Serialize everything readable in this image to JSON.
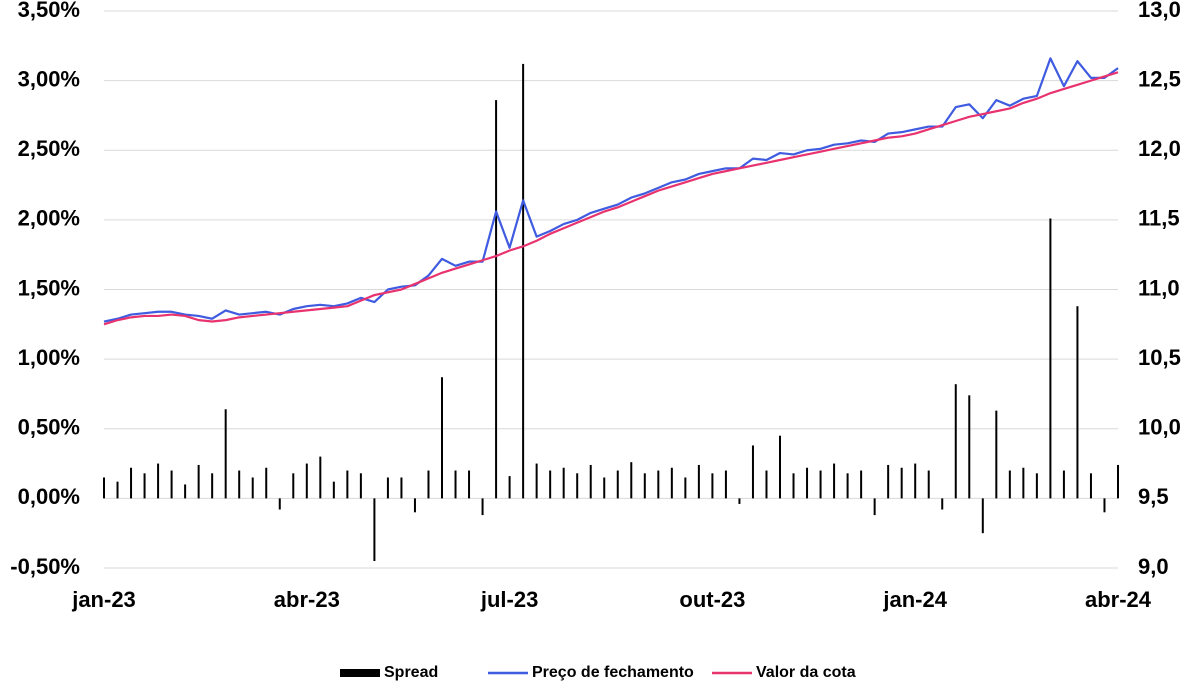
{
  "chart_data": {
    "type": "bar-line-combo",
    "categories": [
      "jan-23",
      null,
      null,
      null,
      null,
      null,
      null,
      null,
      null,
      null,
      null,
      null,
      null,
      null,
      null,
      "abr-23",
      null,
      null,
      null,
      null,
      null,
      null,
      null,
      null,
      null,
      null,
      null,
      null,
      null,
      null,
      "jul-23",
      null,
      null,
      null,
      null,
      null,
      null,
      null,
      null,
      null,
      null,
      null,
      null,
      null,
      null,
      "out-23",
      null,
      null,
      null,
      null,
      null,
      null,
      null,
      null,
      null,
      null,
      null,
      null,
      null,
      null,
      "jan-24",
      null,
      null,
      null,
      null,
      null,
      null,
      null,
      null,
      null,
      null,
      null,
      null,
      null,
      null,
      "abr-24"
    ],
    "series": [
      {
        "name": "Spread",
        "color": "#000000",
        "kind": "bar",
        "axis": "y",
        "values": [
          0.15,
          0.12,
          0.22,
          0.18,
          0.25,
          0.2,
          0.1,
          0.24,
          0.18,
          0.64,
          0.2,
          0.15,
          0.22,
          -0.08,
          0.18,
          0.25,
          0.3,
          0.12,
          0.2,
          0.18,
          -0.45,
          0.15,
          0.15,
          -0.1,
          0.2,
          0.87,
          0.2,
          0.2,
          -0.12,
          2.86,
          0.16,
          3.12,
          0.25,
          0.2,
          0.22,
          0.18,
          0.24,
          0.15,
          0.2,
          0.26,
          0.18,
          0.2,
          0.22,
          0.15,
          0.24,
          0.18,
          0.2,
          -0.04,
          0.38,
          0.2,
          0.45,
          0.18,
          0.22,
          0.2,
          0.25,
          0.18,
          0.2,
          -0.12,
          0.24,
          0.22,
          0.25,
          0.2,
          -0.08,
          0.82,
          0.74,
          -0.25,
          0.63,
          0.2,
          0.22,
          0.18,
          2.01,
          0.2,
          1.38,
          0.18,
          -0.1,
          0.24
        ]
      },
      {
        "name": "Preço de fechamento",
        "color": "#3f5be0",
        "kind": "line",
        "axis": "y2",
        "values": [
          10.77,
          10.79,
          10.82,
          10.83,
          10.84,
          10.84,
          10.82,
          10.81,
          10.79,
          10.85,
          10.82,
          10.83,
          10.84,
          10.82,
          10.86,
          10.88,
          10.89,
          10.88,
          10.9,
          10.94,
          10.91,
          11.0,
          11.02,
          11.03,
          11.1,
          11.22,
          11.17,
          11.2,
          11.2,
          11.56,
          11.3,
          11.64,
          11.38,
          11.42,
          11.47,
          11.5,
          11.55,
          11.58,
          11.61,
          11.66,
          11.69,
          11.73,
          11.77,
          11.79,
          11.83,
          11.85,
          11.87,
          11.87,
          11.94,
          11.93,
          11.98,
          11.97,
          12.0,
          12.01,
          12.04,
          12.05,
          12.07,
          12.06,
          12.12,
          12.13,
          12.15,
          12.17,
          12.17,
          12.31,
          12.33,
          12.23,
          12.36,
          12.32,
          12.37,
          12.39,
          12.66,
          12.46,
          12.64,
          12.52,
          12.52,
          12.59
        ]
      },
      {
        "name": "Valor da cota",
        "color": "#e8336e",
        "kind": "line",
        "axis": "y2",
        "values": [
          10.75,
          10.78,
          10.8,
          10.81,
          10.81,
          10.82,
          10.81,
          10.78,
          10.77,
          10.78,
          10.8,
          10.81,
          10.82,
          10.83,
          10.84,
          10.85,
          10.86,
          10.87,
          10.88,
          10.92,
          10.96,
          10.98,
          11.0,
          11.04,
          11.08,
          11.12,
          11.15,
          11.18,
          11.21,
          11.24,
          11.28,
          11.31,
          11.35,
          11.4,
          11.44,
          11.48,
          11.52,
          11.56,
          11.59,
          11.63,
          11.67,
          11.71,
          11.74,
          11.77,
          11.8,
          11.83,
          11.85,
          11.87,
          11.89,
          11.91,
          11.93,
          11.95,
          11.97,
          11.99,
          12.01,
          12.03,
          12.05,
          12.07,
          12.09,
          12.1,
          12.12,
          12.15,
          12.18,
          12.21,
          12.24,
          12.26,
          12.28,
          12.3,
          12.34,
          12.37,
          12.41,
          12.44,
          12.47,
          12.5,
          12.53,
          12.56
        ]
      }
    ],
    "ylim": [
      -0.5,
      3.5
    ],
    "yticks": [
      {
        "value": -0.5,
        "label": "-0,50%"
      },
      {
        "value": 0,
        "label": "0,00%"
      },
      {
        "value": 0.5,
        "label": "0,50%"
      },
      {
        "value": 1,
        "label": "1,00%"
      },
      {
        "value": 1.5,
        "label": "1,50%"
      },
      {
        "value": 2,
        "label": "2,00%"
      },
      {
        "value": 2.5,
        "label": "2,50%"
      },
      {
        "value": 3,
        "label": "3,00%"
      },
      {
        "value": 3.5,
        "label": "3,50%"
      }
    ],
    "y2lim": [
      9.0,
      13.0
    ],
    "y2ticks": [
      {
        "value": 9,
        "label": "9,0"
      },
      {
        "value": 9.5,
        "label": "9,5"
      },
      {
        "value": 10,
        "label": "10,0"
      },
      {
        "value": 10.5,
        "label": "10,5"
      },
      {
        "value": 11,
        "label": "11,0"
      },
      {
        "value": 11.5,
        "label": "11,5"
      },
      {
        "value": 12,
        "label": "12,0"
      },
      {
        "value": 12.5,
        "label": "12,5"
      },
      {
        "value": 13,
        "label": "13,0"
      }
    ],
    "grid": true,
    "legend": "bottom"
  }
}
